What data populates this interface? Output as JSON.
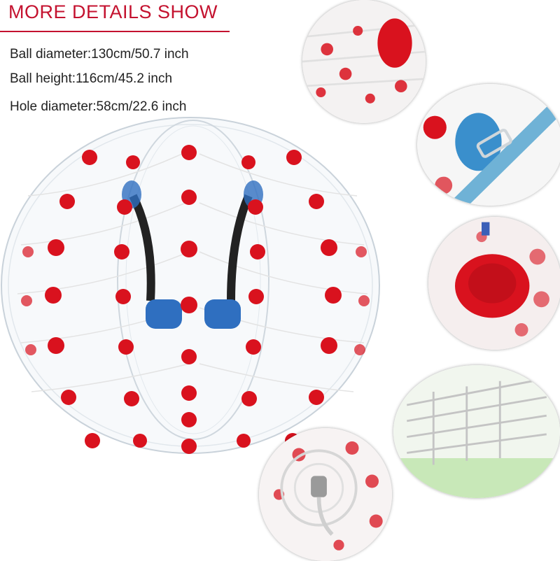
{
  "header": {
    "title": "MORE DETAILS SHOW"
  },
  "specs": {
    "ball_diameter": "Ball diameter:130cm/50.7 inch",
    "ball_height": "Ball height:116cm/45.2 inch",
    "hole_diameter": "Hole diameter:58cm/22.6 inch"
  },
  "colors": {
    "accent": "#c4122f",
    "dot_red": "#d9121e",
    "handle_blue": "#2f6fc0",
    "strap_blue": "#5aa7d6"
  }
}
